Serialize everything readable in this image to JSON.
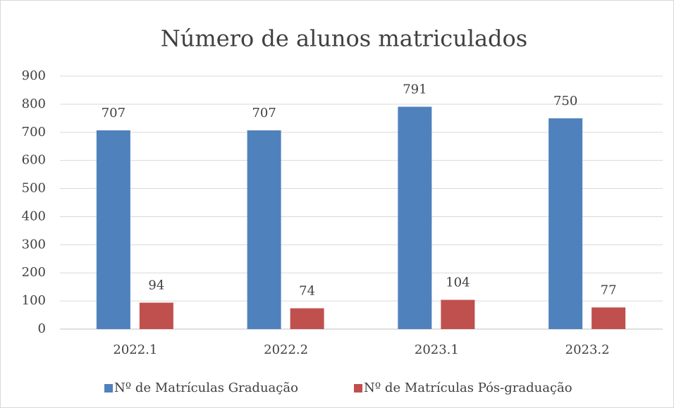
{
  "chart_data": {
    "type": "bar",
    "title": "Número de alunos matriculados",
    "categories": [
      "2022.1",
      "2022.2",
      "2023.1",
      "2023.2"
    ],
    "series": [
      {
        "name": "Nº de Matrículas Graduação",
        "color": "#4f81bd",
        "values": [
          707,
          707,
          791,
          750
        ]
      },
      {
        "name": "Nº de Matrículas Pós-graduação",
        "color": "#c0504d",
        "values": [
          94,
          74,
          104,
          77
        ]
      }
    ],
    "ylim": [
      0,
      900
    ],
    "yticks": [
      0,
      100,
      200,
      300,
      400,
      500,
      600,
      700,
      800,
      900
    ],
    "grid": true,
    "legend": "bottom"
  }
}
